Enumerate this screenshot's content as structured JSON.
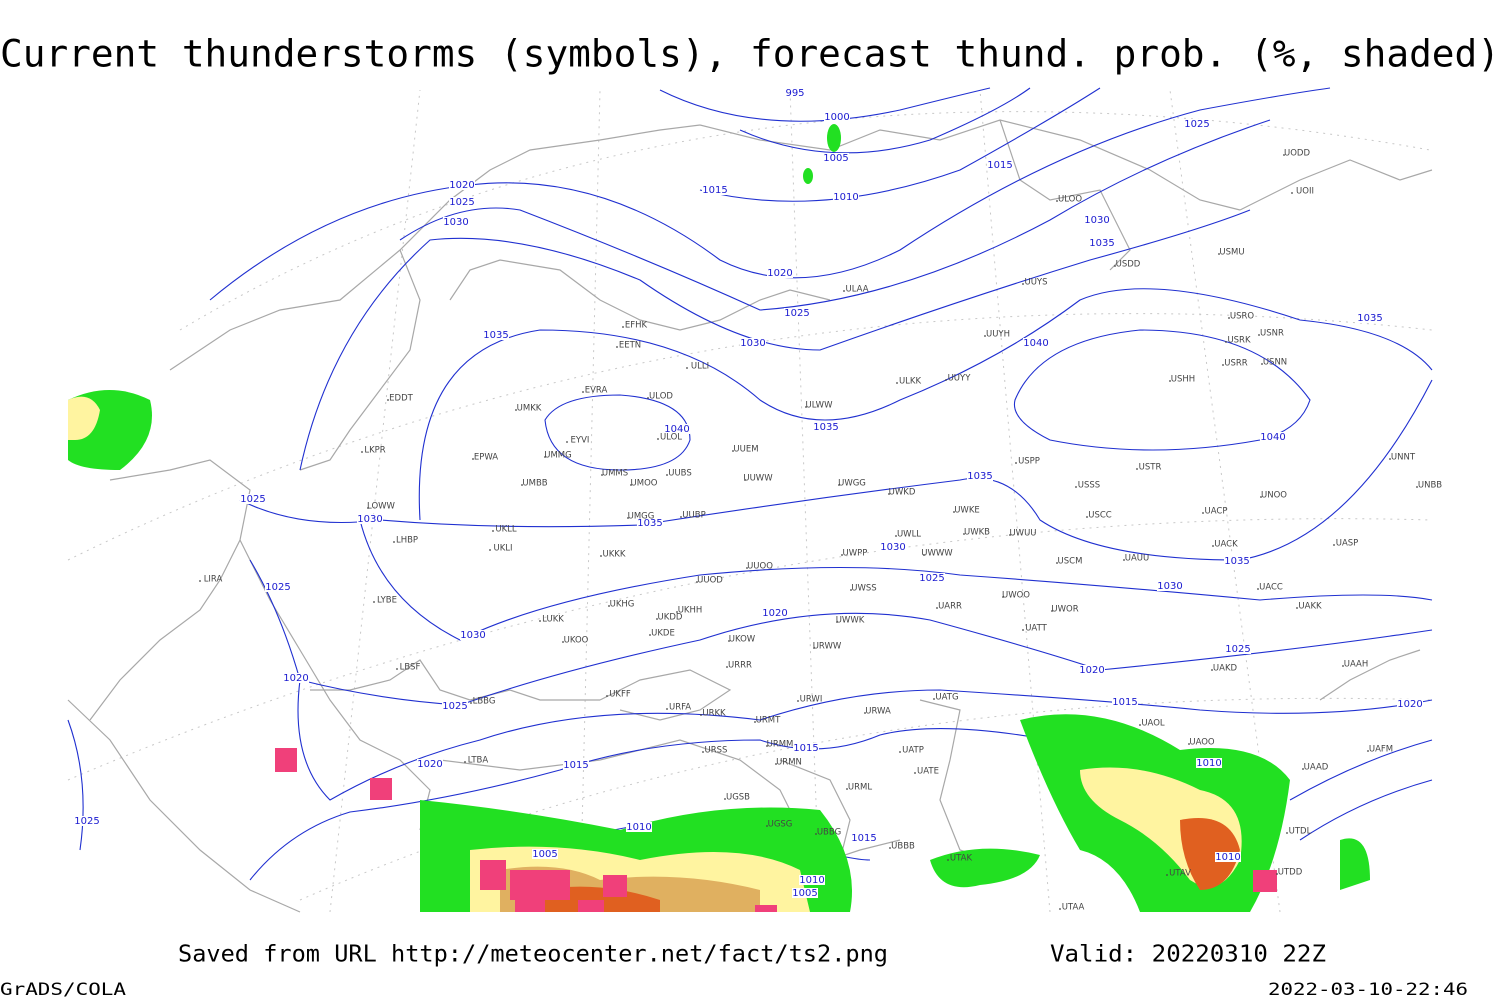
{
  "header": {
    "title": "Current thunderstorms (symbols), forecast thund. prob. (%, shaded)"
  },
  "isobar_labels": [
    995,
    1000,
    1005,
    1010,
    1015,
    1015,
    1020,
    1025,
    1030,
    1025,
    1030,
    1035,
    1020,
    1025,
    1030,
    1035,
    1040,
    1035,
    1040,
    1035,
    1040,
    1035,
    1035,
    1030,
    1025,
    1030,
    1035,
    1025,
    1025,
    1030,
    1030,
    1020,
    1025,
    1020,
    1020,
    1025,
    1015,
    1020,
    1015,
    1020,
    1015,
    1010,
    1010,
    1015,
    1005,
    1010,
    1010,
    1005,
    1025
  ],
  "stations": [
    "UODD",
    "UOII",
    "ULOO",
    "USMU",
    "USDD",
    "ULAA",
    "UUYS",
    "USRO",
    "USRK",
    "USNR",
    "USRR",
    "USNN",
    "EFHK",
    "EETN",
    "UUYH",
    "USHH",
    "ULLI",
    "ULKK",
    "UUYY",
    "EVRA",
    "ULOD",
    "EDDT",
    "UMKK",
    "ULWW",
    "EYVI",
    "ULOL",
    "UUEM",
    "LKPR",
    "EPWA",
    "UMMG",
    "USPP",
    "USTR",
    "UNNT",
    "UMMS",
    "UUBS",
    "UUWW",
    "UMBB",
    "UMOO",
    "UWGG",
    "UWKD",
    "USSS",
    "UNOO",
    "UNBB",
    "LOWW",
    "UWKE",
    "UKLL",
    "UMGG",
    "UUBP",
    "USCC",
    "UACP",
    "UWKB",
    "UWUU",
    "LHBP",
    "UKLI",
    "UKKK",
    "UWLL",
    "UWPP",
    "UWWW",
    "UACK",
    "UASP",
    "USCM",
    "UAUU",
    "UUOO",
    "LIRA",
    "UUOD",
    "UWSS",
    "UACC",
    "LYBE",
    "UKHG",
    "UKDD",
    "UKHH",
    "UWOO",
    "UWOR",
    "UAKK",
    "UARR",
    "LUKK",
    "UWWK",
    "UATT",
    "UKOO",
    "UKDE",
    "UKOW",
    "URWW",
    "LBSF",
    "URRR",
    "UAKD",
    "UAAH",
    "LBBG",
    "UKFF",
    "URWI",
    "UATG",
    "URFA",
    "URKK",
    "URWA",
    "UAOL",
    "URMT",
    "URMM",
    "UATP",
    "UAOO",
    "UAFM",
    "URSS",
    "URMN",
    "UATE",
    "UAAD",
    "LTBA",
    "UGSB",
    "URML",
    "UGSG",
    "UBBG",
    "UTDL",
    "UBBB",
    "UTAK",
    "UTAV",
    "UTDD",
    "UTAA"
  ],
  "footer": {
    "source": "Saved from URL http://meteocenter.net/fact/ts2.png",
    "valid": "Valid: 20220310 22Z",
    "credit": "GrADS/COLA",
    "timestamp": "2022-03-10-22:46"
  }
}
